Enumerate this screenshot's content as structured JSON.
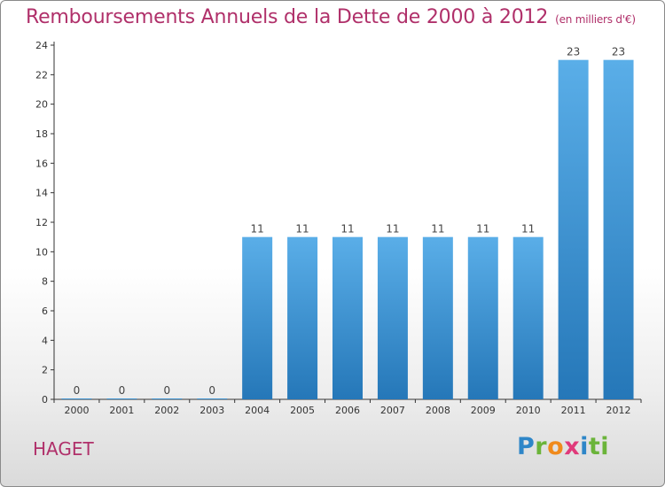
{
  "header": {
    "title": "Remboursements Annuels de la Dette de 2000 à 2012",
    "subtitle": "(en milliers d'€)"
  },
  "footer": {
    "city": "HAGET",
    "logo_letters": [
      "P",
      "r",
      "o",
      "x",
      "i",
      "ti"
    ]
  },
  "colors": {
    "title": "#b0306a",
    "bar_top": "#5aaee8",
    "bar_bottom": "#2577b8",
    "axis": "#333333"
  },
  "chart_data": {
    "type": "bar",
    "title": "Remboursements Annuels de la Dette de 2000 à 2012",
    "subtitle": "(en milliers d'€)",
    "categories": [
      "2000",
      "2001",
      "2002",
      "2003",
      "2004",
      "2005",
      "2006",
      "2007",
      "2008",
      "2009",
      "2010",
      "2011",
      "2012"
    ],
    "values": [
      0,
      0,
      0,
      0,
      11,
      11,
      11,
      11,
      11,
      11,
      11,
      23,
      23
    ],
    "value_labels": [
      "0",
      "0",
      "0",
      "0",
      "11",
      "11",
      "11",
      "11",
      "11",
      "11",
      "11",
      "23",
      "23"
    ],
    "xlabel": "",
    "ylabel": "",
    "ylim": [
      0,
      24
    ],
    "yticks": [
      0,
      2,
      4,
      6,
      8,
      10,
      12,
      14,
      16,
      18,
      20,
      22,
      24
    ],
    "grid": false,
    "legend": "none"
  }
}
